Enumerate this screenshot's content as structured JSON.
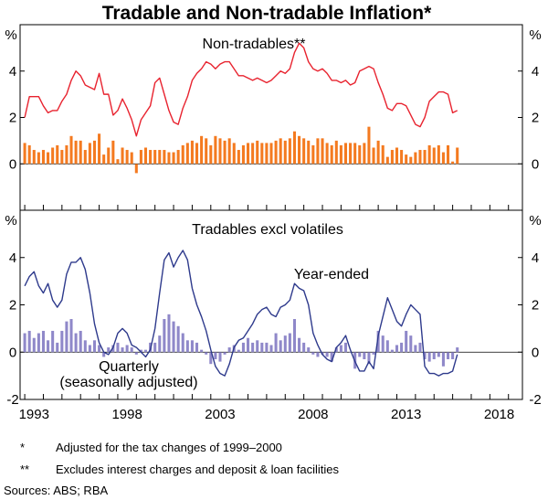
{
  "chart_data": {
    "title": "Tradable and Non-tradable Inflation*",
    "type": "line",
    "x_tick_labels": [
      "1993",
      "1998",
      "2003",
      "2008",
      "2013",
      "2018"
    ],
    "x_ticks": [
      1993,
      1998,
      2003,
      2008,
      2013,
      2018
    ],
    "xlim": [
      1992.75,
      2019.75
    ],
    "panels": [
      {
        "title": "Non-tradables**",
        "y_unit_label": "%",
        "ylim": [
          -2.0,
          6.0
        ],
        "y_tick_labels": [
          "0",
          "2",
          "4"
        ],
        "y_ticks": [
          0,
          2,
          4
        ],
        "series": [
          {
            "name": "Year-ended",
            "type": "line",
            "color": "#e8232f",
            "x_start": 1993.0,
            "x_step": 0.25,
            "values": [
              2.0,
              2.9,
              2.9,
              2.9,
              2.5,
              2.2,
              2.3,
              2.3,
              2.7,
              3.0,
              3.6,
              4.0,
              3.8,
              3.4,
              3.3,
              3.2,
              3.9,
              3.0,
              3.0,
              2.1,
              2.3,
              2.8,
              2.4,
              1.9,
              1.2,
              1.9,
              2.2,
              2.5,
              3.5,
              3.7,
              3.0,
              2.3,
              1.8,
              1.7,
              2.4,
              2.9,
              3.6,
              3.9,
              4.1,
              4.4,
              4.3,
              4.1,
              4.3,
              4.4,
              4.4,
              4.1,
              3.8,
              3.8,
              3.7,
              3.6,
              3.7,
              3.6,
              3.5,
              3.6,
              3.8,
              4.0,
              3.9,
              4.1,
              4.8,
              5.2,
              5.0,
              4.4,
              4.1,
              4.0,
              4.1,
              3.9,
              3.6,
              3.6,
              3.5,
              3.6,
              3.4,
              3.5,
              4.0,
              4.1,
              4.2,
              4.1,
              3.5,
              3.0,
              2.4,
              2.3,
              2.6,
              2.6,
              2.5,
              2.1,
              1.7,
              1.6,
              2.0,
              2.7,
              2.9,
              3.1,
              3.1,
              3.0,
              2.2,
              2.3
            ]
          },
          {
            "name": "Quarterly",
            "type": "bar",
            "color": "#f47a20",
            "x_start": 1993.0,
            "x_step": 0.25,
            "values": [
              0.9,
              0.8,
              0.6,
              0.5,
              0.6,
              0.5,
              0.7,
              0.8,
              0.6,
              0.8,
              1.2,
              1.0,
              1.0,
              0.6,
              0.9,
              1.0,
              1.3,
              0.4,
              0.7,
              1.0,
              0.2,
              0.7,
              0.6,
              0.5,
              -0.4,
              0.6,
              0.7,
              0.6,
              0.6,
              0.6,
              0.6,
              0.5,
              0.5,
              0.6,
              0.8,
              0.9,
              1.0,
              0.9,
              1.2,
              1.1,
              0.8,
              1.2,
              1.1,
              1.0,
              1.1,
              0.9,
              0.6,
              0.8,
              0.9,
              0.9,
              1.0,
              0.9,
              0.9,
              0.9,
              1.0,
              1.1,
              1.0,
              1.1,
              1.4,
              1.2,
              1.1,
              1.0,
              0.8,
              1.1,
              1.1,
              0.9,
              0.8,
              1.0,
              0.8,
              0.9,
              0.9,
              0.9,
              0.8,
              0.9,
              1.6,
              0.7,
              1.0,
              0.8,
              0.3,
              0.6,
              0.7,
              0.6,
              0.4,
              0.3,
              0.5,
              0.6,
              0.6,
              0.8,
              0.7,
              0.8,
              0.5,
              0.8,
              0.1,
              0.7
            ]
          }
        ]
      },
      {
        "title": "Tradables excl volatiles",
        "y_unit_label": "%",
        "ylim": [
          -2.0,
          6.0
        ],
        "y_tick_labels": [
          "4",
          "2",
          "0",
          "-2"
        ],
        "y_ticks": [
          4,
          2,
          0,
          -2
        ],
        "series": [
          {
            "name": "Year-ended",
            "type": "line",
            "color": "#2e3a8c",
            "x_start": 1993.0,
            "x_step": 0.25,
            "values": [
              2.8,
              3.2,
              3.4,
              2.8,
              2.5,
              2.9,
              2.2,
              1.9,
              2.2,
              3.3,
              3.8,
              3.8,
              4.0,
              3.5,
              2.5,
              1.2,
              0.4,
              0.0,
              -0.1,
              0.2,
              0.8,
              1.0,
              0.8,
              0.3,
              0.2,
              0.0,
              -0.2,
              0.1,
              1.0,
              2.5,
              3.9,
              4.2,
              3.6,
              4.0,
              4.3,
              3.9,
              2.7,
              2.0,
              1.5,
              0.9,
              0.1,
              -0.6,
              -0.9,
              -1.0,
              -0.5,
              0.2,
              0.5,
              0.6,
              0.9,
              1.2,
              1.6,
              1.8,
              1.9,
              1.6,
              1.5,
              1.9,
              2.0,
              2.2,
              2.9,
              2.7,
              2.6,
              2.0,
              0.8,
              0.3,
              -0.1,
              -0.3,
              -0.4,
              0.2,
              0.4,
              0.7,
              0.1,
              -0.4,
              -0.8,
              -0.8,
              -0.4,
              -0.7,
              0.7,
              1.5,
              2.3,
              1.8,
              1.3,
              1.1,
              1.6,
              2.0,
              1.8,
              1.6,
              -0.6,
              -0.9,
              -0.9,
              -1.0,
              -0.9,
              -0.9,
              -0.8,
              -0.1
            ]
          },
          {
            "name": "Quarterly (seasonally adjusted)",
            "type": "bar",
            "color": "#8f88c9",
            "x_start": 1993.0,
            "x_step": 0.25,
            "values": [
              0.8,
              0.9,
              0.6,
              0.8,
              0.9,
              0.5,
              0.9,
              0.4,
              0.9,
              1.3,
              1.4,
              0.8,
              0.9,
              0.5,
              0.3,
              0.5,
              0.3,
              -0.2,
              0.2,
              0.3,
              0.4,
              0.2,
              0.3,
              0.2,
              -0.1,
              0.1,
              0.1,
              0.4,
              0.4,
              0.7,
              1.4,
              1.6,
              1.3,
              1.1,
              0.8,
              0.5,
              0.5,
              0.4,
              0.1,
              -0.1,
              -0.5,
              -0.3,
              -0.4,
              -0.1,
              0.2,
              0.3,
              0.1,
              0.4,
              0.6,
              0.4,
              0.5,
              0.4,
              0.4,
              0.3,
              0.8,
              0.5,
              0.7,
              0.8,
              1.4,
              0.6,
              0.4,
              0.2,
              -0.1,
              -0.2,
              -0.1,
              -0.2,
              -0.4,
              0.2,
              0.3,
              0.4,
              0.0,
              -0.7,
              -0.2,
              -0.3,
              -0.5,
              -0.1,
              0.9,
              0.7,
              0.5,
              0.1,
              0.3,
              0.4,
              0.9,
              0.7,
              0.3,
              0.4,
              -0.3,
              -0.4,
              -0.3,
              -0.2,
              -0.6,
              -0.3,
              -0.3,
              0.2
            ]
          }
        ],
        "annotations": [
          {
            "text": "Year-ended",
            "color": "#2e3a8c"
          },
          {
            "text": "Quarterly",
            "color": "#8f88c9"
          },
          {
            "text": "(seasonally adjusted)",
            "color": "#8f88c9"
          }
        ]
      }
    ],
    "footnotes": [
      {
        "marker": "*",
        "text": "Adjusted for the tax changes of 1999–2000"
      },
      {
        "marker": "**",
        "text": "Excludes interest charges and deposit & loan facilities"
      }
    ],
    "source": "Sources: ABS; RBA"
  }
}
